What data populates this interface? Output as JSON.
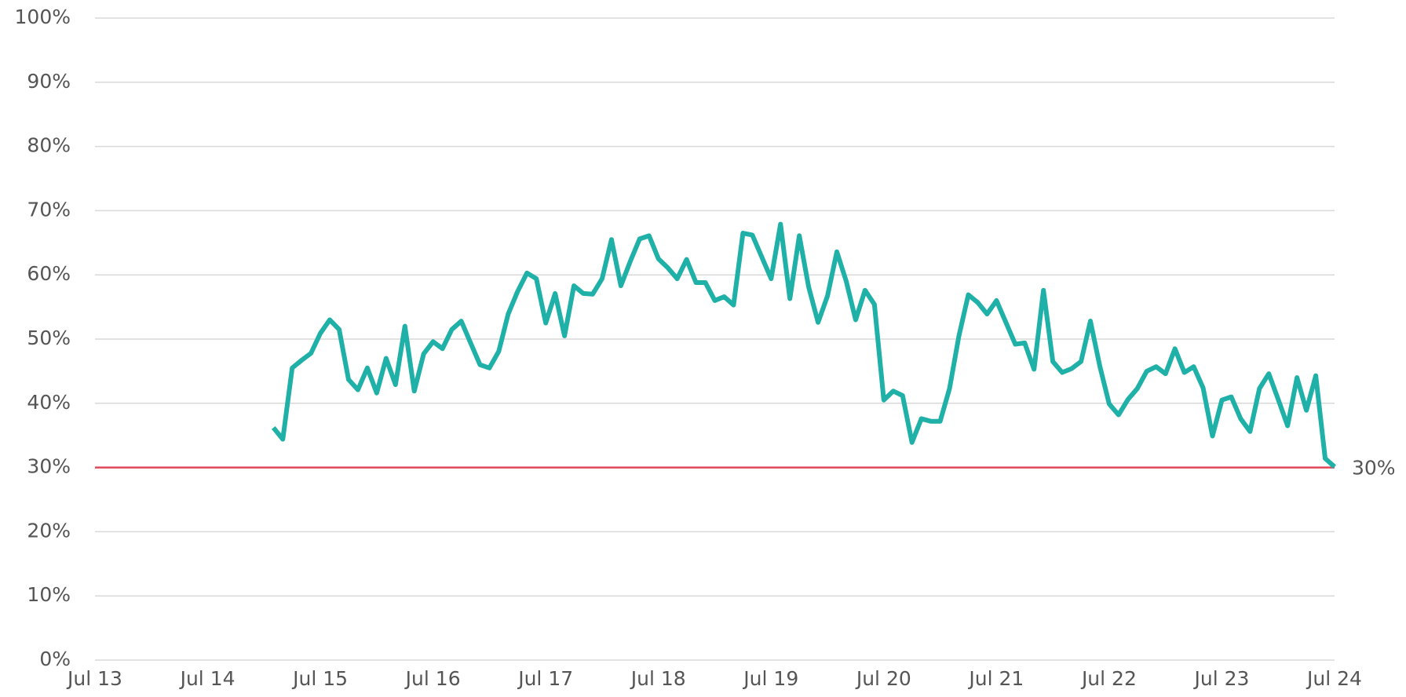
{
  "chart_data": {
    "type": "line",
    "x": [
      "Feb 15",
      "Mar 15",
      "Apr 15",
      "May 15",
      "Jun 15",
      "Jul 15",
      "Aug 15",
      "Sep 15",
      "Oct 15",
      "Nov 15",
      "Dec 15",
      "Jan 16",
      "Feb 16",
      "Mar 16",
      "Apr 16",
      "May 16",
      "Jun 16",
      "Jul 16",
      "Aug 16",
      "Sep 16",
      "Oct 16",
      "Nov 16",
      "Dec 16",
      "Jan 17",
      "Feb 17",
      "Mar 17",
      "Apr 17",
      "May 17",
      "Jun 17",
      "Jul 17",
      "Aug 17",
      "Sep 17",
      "Oct 17",
      "Nov 17",
      "Dec 17",
      "Jan 18",
      "Feb 18",
      "Mar 18",
      "Apr 18",
      "May 18",
      "Jun 18",
      "Jul 18",
      "Aug 18",
      "Sep 18",
      "Oct 18",
      "Nov 18",
      "Dec 18",
      "Jan 19",
      "Feb 19",
      "Mar 19",
      "Apr 19",
      "May 19",
      "Jun 19",
      "Jul 19",
      "Aug 19",
      "Sep 19",
      "Oct 19",
      "Nov 19",
      "Dec 19",
      "Jan 20",
      "Feb 20",
      "Mar 20",
      "Apr 20",
      "May 20",
      "Jun 20",
      "Jul 20",
      "Aug 20",
      "Sep 20",
      "Oct 20",
      "Nov 20",
      "Dec 20",
      "Jan 21",
      "Feb 21",
      "Mar 21",
      "Apr 21",
      "May 21",
      "Jun 21",
      "Jul 21",
      "Aug 21",
      "Sep 21",
      "Oct 21",
      "Nov 21",
      "Dec 21",
      "Jan 22",
      "Feb 22",
      "Mar 22",
      "Apr 22",
      "May 22",
      "Jun 22",
      "Jul 22",
      "Aug 22",
      "Sep 22",
      "Oct 22",
      "Nov 22",
      "Dec 22",
      "Jan 23",
      "Feb 23",
      "Mar 23",
      "Apr 23",
      "May 23",
      "Jun 23",
      "Jul 23",
      "Aug 23",
      "Sep 23",
      "Oct 23",
      "Nov 23",
      "Dec 23",
      "Jan 24",
      "Feb 24",
      "Mar 24",
      "Apr 24",
      "May 24",
      "Jun 24",
      "Jul 24"
    ],
    "series": [
      {
        "color": "#1fb0a8",
        "values": [
          36.2,
          34.4,
          45.5,
          46.7,
          47.8,
          50.9,
          53,
          51.5,
          43.7,
          42.1,
          45.5,
          41.6,
          47,
          42.9,
          52,
          41.9,
          47.7,
          49.6,
          48.5,
          51.5,
          52.8,
          49.4,
          46,
          45.5,
          48.1,
          53.9,
          57.4,
          60.3,
          59.4,
          52.5,
          57.1,
          50.5,
          58.3,
          57.1,
          57,
          59.4,
          65.5,
          58.3,
          62.1,
          65.6,
          66.1,
          62.5,
          61.1,
          59.4,
          62.4,
          58.8,
          58.8,
          56,
          56.6,
          55.3,
          66.5,
          66.2,
          62.8,
          59.4,
          67.9,
          56.3,
          66.1,
          58.1,
          52.6,
          56.7,
          63.6,
          59,
          53,
          57.6,
          55.4,
          40.5,
          41.9,
          41.2,
          33.9,
          37.6,
          37.2,
          37.2,
          42.3,
          50.5,
          56.9,
          55.7,
          53.9,
          56,
          52.6,
          49.2,
          49.4,
          45.3,
          57.6,
          46.5,
          44.8,
          45.4,
          46.5,
          52.8,
          45.8,
          39.9,
          38.2,
          40.6,
          42.3,
          45,
          45.7,
          44.6,
          48.5,
          44.8,
          45.7,
          42.4,
          34.9,
          40.5,
          41,
          37.6,
          35.6,
          42.3,
          44.6,
          40.6,
          36.5,
          44,
          38.9,
          44.3,
          31.4,
          30.1
        ]
      }
    ],
    "xlim": [
      "Jul 13",
      "Jul 24"
    ],
    "xticks": [
      "Jul 13",
      "Jul 14",
      "Jul 15",
      "Jul 16",
      "Jul 17",
      "Jul 18",
      "Jul 19",
      "Jul 20",
      "Jul 21",
      "Jul 22",
      "Jul 23",
      "Jul 24"
    ],
    "ylim": [
      0,
      100
    ],
    "yticks": [
      {
        "value": 0,
        "label": "0%"
      },
      {
        "value": 10,
        "label": "10%"
      },
      {
        "value": 20,
        "label": "20%"
      },
      {
        "value": 30,
        "label": "30%"
      },
      {
        "value": 40,
        "label": "40%"
      },
      {
        "value": 50,
        "label": "50%"
      },
      {
        "value": 60,
        "label": "60%"
      },
      {
        "value": 70,
        "label": "70%"
      },
      {
        "value": 80,
        "label": "80%"
      },
      {
        "value": 90,
        "label": "90%"
      },
      {
        "value": 100,
        "label": "100%"
      }
    ],
    "grid": true,
    "reference_line": {
      "value": 30,
      "label": "30%",
      "color": "#e0485a"
    }
  }
}
